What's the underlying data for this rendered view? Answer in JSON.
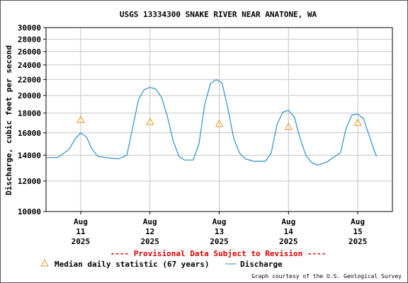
{
  "chart_data": {
    "type": "line",
    "title": "USGS 13334300 SNAKE RIVER NEAR ANATONE, WA",
    "ylabel": "Discharge, cubic feet per second",
    "xlabel": "",
    "y_scale": "log",
    "ylim": [
      10000,
      30000
    ],
    "y_ticks": [
      "30000",
      "28000",
      "26000",
      "24000",
      "22000",
      "20000",
      "18000",
      "16000",
      "14000",
      "12000",
      "10000"
    ],
    "y_tick_values": [
      30000,
      28000,
      26000,
      24000,
      22000,
      20000,
      18000,
      16000,
      14000,
      12000,
      10000
    ],
    "x_range": [
      "Aug 10 2025 12:00",
      "Aug 15 2025 12:00"
    ],
    "x_ticks": [
      {
        "month": "Aug",
        "day": "11",
        "year": "2025",
        "value": "2025-08-11"
      },
      {
        "month": "Aug",
        "day": "12",
        "year": "2025",
        "value": "2025-08-12"
      },
      {
        "month": "Aug",
        "day": "13",
        "year": "2025",
        "value": "2025-08-13"
      },
      {
        "month": "Aug",
        "day": "14",
        "year": "2025",
        "value": "2025-08-14"
      },
      {
        "month": "Aug",
        "day": "15",
        "year": "2025",
        "value": "2025-08-15"
      }
    ],
    "grid": true,
    "series": [
      {
        "name": "Discharge",
        "color": "#2b8fc7",
        "points": [
          [
            "2025-08-10T12:00",
            13800
          ],
          [
            "2025-08-10T16:00",
            13800
          ],
          [
            "2025-08-10T20:00",
            14500
          ],
          [
            "2025-08-10T22:00",
            15400
          ],
          [
            "2025-08-11T00:00",
            16000
          ],
          [
            "2025-08-11T02:00",
            15600
          ],
          [
            "2025-08-11T04:00",
            14500
          ],
          [
            "2025-08-11T06:00",
            13900
          ],
          [
            "2025-08-11T09:00",
            13800
          ],
          [
            "2025-08-11T13:00",
            13700
          ],
          [
            "2025-08-11T16:00",
            14000
          ],
          [
            "2025-08-11T18:00",
            16500
          ],
          [
            "2025-08-11T20:00",
            19500
          ],
          [
            "2025-08-11T22:00",
            20700
          ],
          [
            "2025-08-12T00:00",
            21000
          ],
          [
            "2025-08-12T02:00",
            20800
          ],
          [
            "2025-08-12T04:00",
            19800
          ],
          [
            "2025-08-12T06:00",
            17700
          ],
          [
            "2025-08-12T08:00",
            15300
          ],
          [
            "2025-08-12T10:00",
            13900
          ],
          [
            "2025-08-12T12:00",
            13600
          ],
          [
            "2025-08-12T15:00",
            13600
          ],
          [
            "2025-08-12T17:00",
            15000
          ],
          [
            "2025-08-12T19:00",
            19000
          ],
          [
            "2025-08-12T21:00",
            21500
          ],
          [
            "2025-08-12T23:00",
            22000
          ],
          [
            "2025-08-13T01:00",
            21500
          ],
          [
            "2025-08-13T03:00",
            18500
          ],
          [
            "2025-08-13T05:00",
            15500
          ],
          [
            "2025-08-13T07:00",
            14200
          ],
          [
            "2025-08-13T09:00",
            13700
          ],
          [
            "2025-08-13T12:00",
            13500
          ],
          [
            "2025-08-13T16:00",
            13500
          ],
          [
            "2025-08-13T18:00",
            14200
          ],
          [
            "2025-08-13T20:00",
            16800
          ],
          [
            "2025-08-13T22:00",
            18100
          ],
          [
            "2025-08-14T00:00",
            18300
          ],
          [
            "2025-08-14T02:00",
            17600
          ],
          [
            "2025-08-14T04:00",
            15500
          ],
          [
            "2025-08-14T06:00",
            14000
          ],
          [
            "2025-08-14T08:00",
            13400
          ],
          [
            "2025-08-14T10:00",
            13200
          ],
          [
            "2025-08-14T13:00",
            13400
          ],
          [
            "2025-08-14T16:00",
            13900
          ],
          [
            "2025-08-14T18:00",
            14200
          ],
          [
            "2025-08-14T20:00",
            16500
          ],
          [
            "2025-08-14T22:00",
            17800
          ],
          [
            "2025-08-15T00:00",
            17900
          ],
          [
            "2025-08-15T02:00",
            17400
          ],
          [
            "2025-08-15T04:00",
            15700
          ],
          [
            "2025-08-15T06:00",
            14200
          ],
          [
            "2025-08-15T06:30",
            13900
          ]
        ]
      },
      {
        "name": "Median daily statistic (67 years)",
        "color": "#e89a1b",
        "marker": "triangle",
        "points": [
          [
            "2025-08-11T00:00",
            17300
          ],
          [
            "2025-08-12T00:00",
            17100
          ],
          [
            "2025-08-13T00:00",
            16900
          ],
          [
            "2025-08-14T00:00",
            16600
          ],
          [
            "2025-08-15T00:00",
            17000
          ]
        ]
      }
    ]
  },
  "notice": "---- Provisional Data Subject to Revision ----",
  "legend": {
    "median_label": "Median daily statistic (67 years)",
    "discharge_label": "Discharge"
  },
  "credit": "Graph courtesy of the U.S. Geological Survey",
  "colors": {
    "notice": "#dd0000",
    "grid": "#c4c4c4",
    "discharge": "#2b8fc7",
    "median": "#e89a1b"
  }
}
